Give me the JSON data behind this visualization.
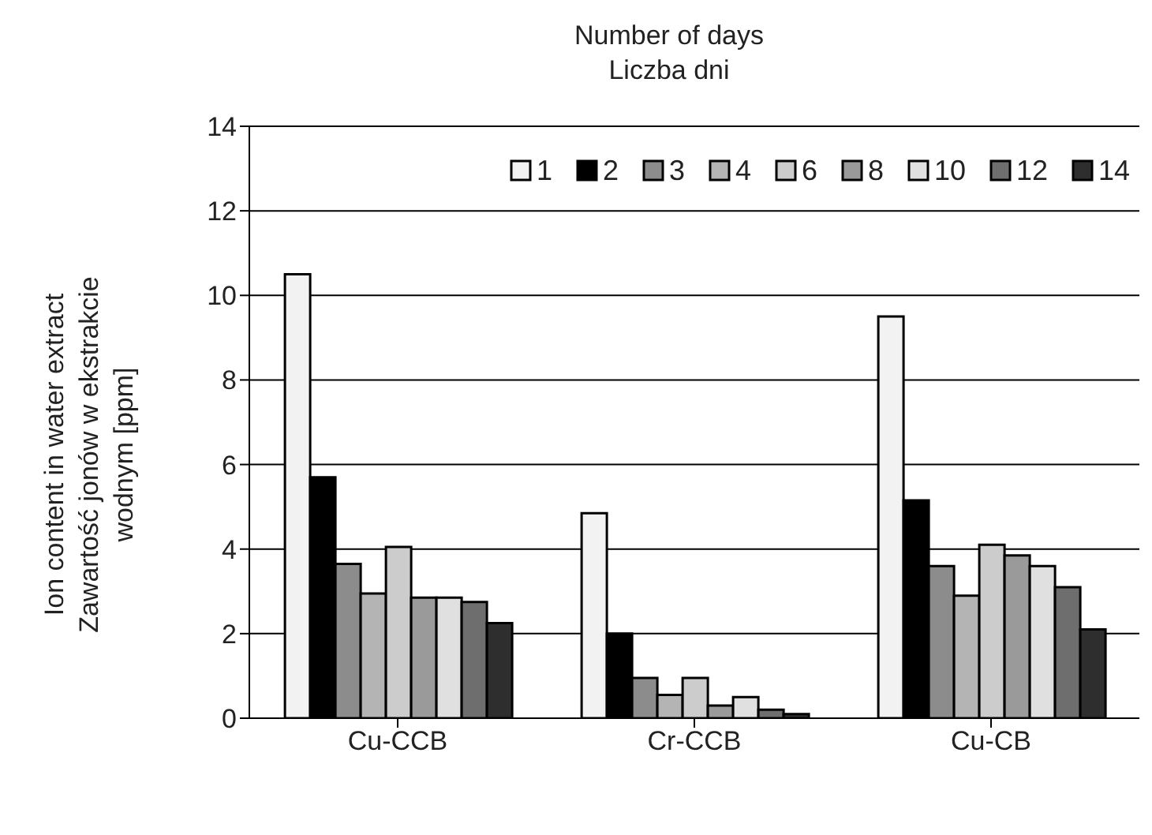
{
  "chart_data": {
    "type": "bar",
    "legend_title": "Number of days\nLiczba dni",
    "ylabel": "Ion content in water extract\nZawartość jonów w ekstrakcie\nwodnym [ppm]",
    "categories": [
      "Cu-CCB",
      "Cr-CCB",
      "Cu-CB"
    ],
    "series": [
      {
        "name": "1",
        "color": "#f2f2f2",
        "values": [
          10.5,
          4.85,
          9.5
        ]
      },
      {
        "name": "2",
        "color": "#000000",
        "values": [
          5.7,
          2.0,
          5.15
        ]
      },
      {
        "name": "3",
        "color": "#8c8c8c",
        "values": [
          3.65,
          0.95,
          3.6
        ]
      },
      {
        "name": "4",
        "color": "#b4b4b4",
        "values": [
          2.95,
          0.55,
          2.9
        ]
      },
      {
        "name": "6",
        "color": "#cccccc",
        "values": [
          4.05,
          0.95,
          4.1
        ]
      },
      {
        "name": "8",
        "color": "#9a9a9a",
        "values": [
          2.85,
          0.3,
          3.85
        ]
      },
      {
        "name": "10",
        "color": "#e0e0e0",
        "values": [
          2.85,
          0.5,
          3.6
        ]
      },
      {
        "name": "12",
        "color": "#6e6e6e",
        "values": [
          2.75,
          0.2,
          3.1
        ]
      },
      {
        "name": "14",
        "color": "#2e2e2e",
        "values": [
          2.25,
          0.1,
          2.1
        ]
      }
    ],
    "ylim": [
      0,
      14
    ],
    "yticks": [
      0,
      2,
      4,
      6,
      8,
      10,
      12,
      14
    ],
    "grid": "y",
    "legend": "top right"
  }
}
